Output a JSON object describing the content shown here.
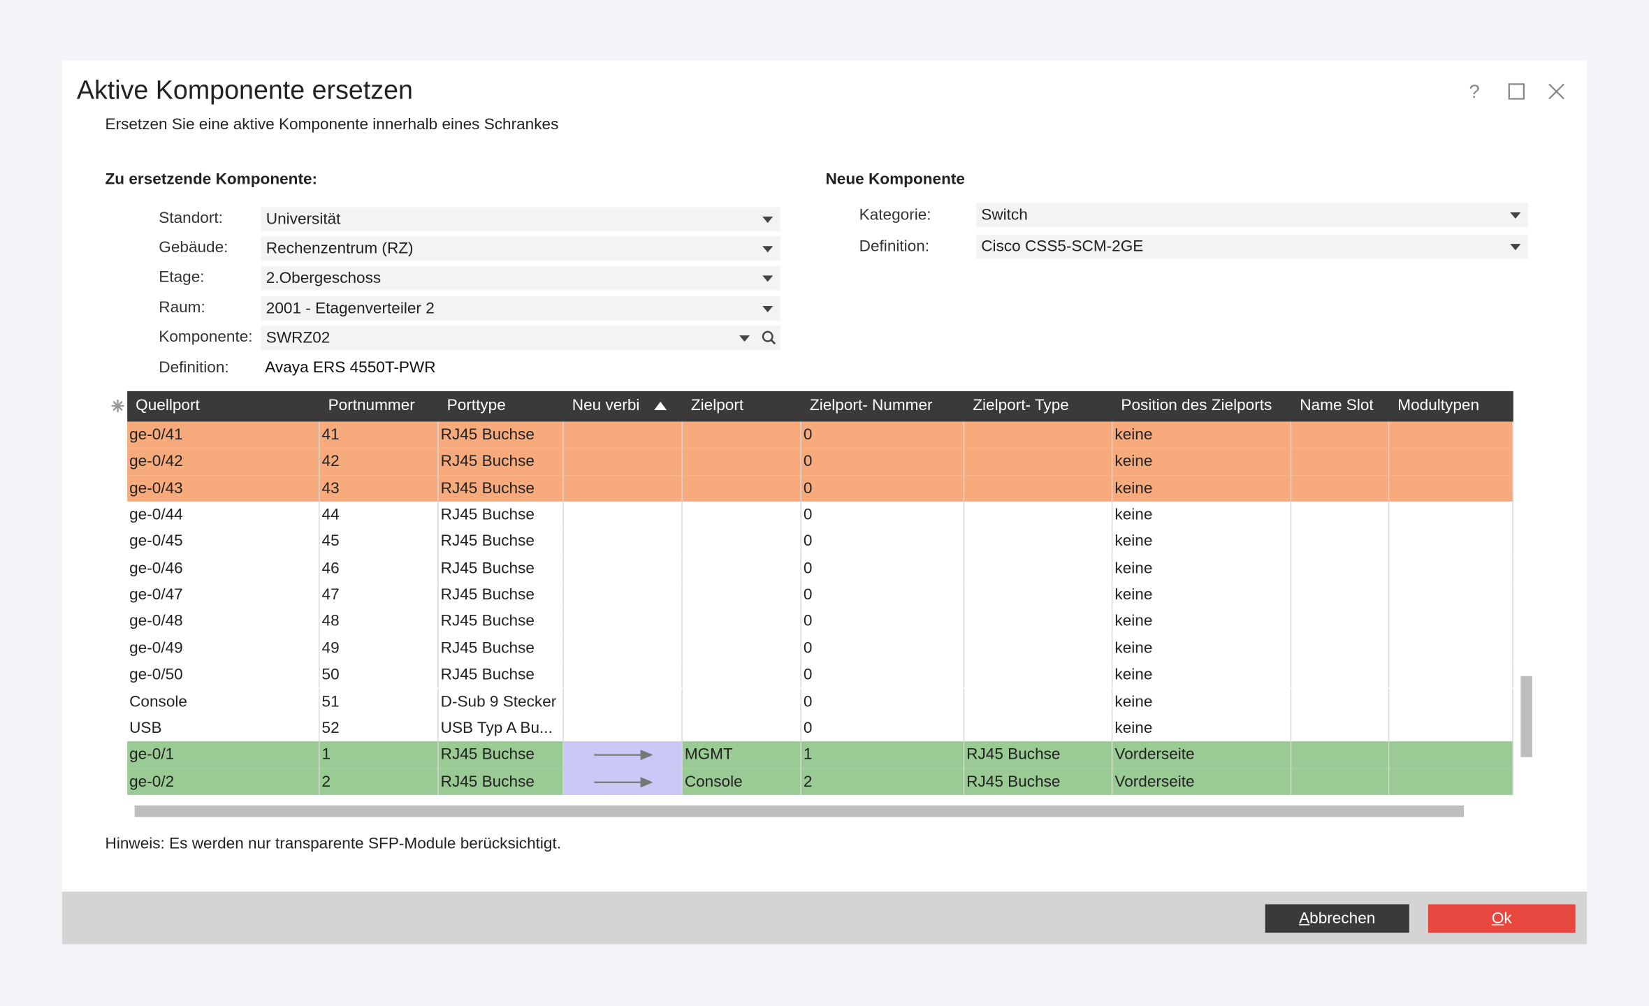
{
  "header": {
    "title": "Aktive Komponente ersetzen",
    "subtitle": "Ersetzen Sie eine aktive Komponente innerhalb eines Schrankes"
  },
  "left": {
    "heading": "Zu ersetzende Komponente:",
    "fields": [
      {
        "label": "Standort:",
        "value": "Universität"
      },
      {
        "label": "Gebäude:",
        "value": "Rechenzentrum (RZ)"
      },
      {
        "label": "Etage:",
        "value": "2.Obergeschoss"
      },
      {
        "label": "Raum:",
        "value": "2001 - Etagenverteiler 2"
      },
      {
        "label": "Komponente:",
        "value": "SWRZ02"
      }
    ],
    "definition": {
      "label": "Definition:",
      "value": "Avaya ERS 4550T-PWR"
    }
  },
  "right": {
    "heading": "Neue Komponente",
    "fields": [
      {
        "label": "Kategorie:",
        "value": "Switch"
      },
      {
        "label": "Definition:",
        "value": "Cisco CSS5-SCM-2GE"
      }
    ]
  },
  "table": {
    "columns": [
      "Quellport",
      "Portnummer",
      "Porttype",
      "Neu verbi",
      "Zielport",
      "Zielport- Nummer",
      "Zielport- Type",
      "Position des Zielports",
      "Name Slot",
      "Modultypen"
    ],
    "rows": [
      {
        "color": "#f7aa7c",
        "cells": [
          "ge-0/41",
          "41",
          "RJ45 Buchse",
          null,
          null,
          "0",
          null,
          "keine",
          null,
          null
        ]
      },
      {
        "color": "#f7aa7c",
        "cells": [
          "ge-0/42",
          "42",
          "RJ45 Buchse",
          null,
          null,
          "0",
          null,
          "keine",
          null,
          null
        ]
      },
      {
        "color": "#f7aa7c",
        "cells": [
          "ge-0/43",
          "43",
          "RJ45 Buchse",
          null,
          null,
          "0",
          null,
          "keine",
          null,
          null
        ]
      },
      {
        "color": null,
        "cells": [
          "ge-0/44",
          "44",
          "RJ45 Buchse",
          null,
          null,
          "0",
          null,
          "keine",
          null,
          null
        ]
      },
      {
        "color": null,
        "cells": [
          "ge-0/45",
          "45",
          "RJ45 Buchse",
          null,
          null,
          "0",
          null,
          "keine",
          null,
          null
        ]
      },
      {
        "color": null,
        "cells": [
          "ge-0/46",
          "46",
          "RJ45 Buchse",
          null,
          null,
          "0",
          null,
          "keine",
          null,
          null
        ]
      },
      {
        "color": null,
        "cells": [
          "ge-0/47",
          "47",
          "RJ45 Buchse",
          null,
          null,
          "0",
          null,
          "keine",
          null,
          null
        ]
      },
      {
        "color": null,
        "cells": [
          "ge-0/48",
          "48",
          "RJ45 Buchse",
          null,
          null,
          "0",
          null,
          "keine",
          null,
          null
        ]
      },
      {
        "color": null,
        "cells": [
          "ge-0/49",
          "49",
          "RJ45 Buchse",
          null,
          null,
          "0",
          null,
          "keine",
          null,
          null
        ]
      },
      {
        "color": null,
        "cells": [
          "ge-0/50",
          "50",
          "RJ45 Buchse",
          null,
          null,
          "0",
          null,
          "keine",
          null,
          null
        ]
      },
      {
        "color": null,
        "cells": [
          "Console",
          "51",
          "D-Sub 9 Stecker",
          null,
          null,
          "0",
          null,
          "keine",
          null,
          null
        ]
      },
      {
        "color": null,
        "cells": [
          "USB",
          "52",
          "USB Typ A Bu...",
          null,
          null,
          "0",
          null,
          "keine",
          null,
          null
        ]
      },
      {
        "color": "#9bcb94",
        "connected": true,
        "cells": [
          "ge-0/1",
          "1",
          "RJ45 Buchse",
          null,
          "MGMT",
          "1",
          "RJ45 Buchse",
          "Vorderseite",
          null,
          null
        ]
      },
      {
        "color": "#9bcb94",
        "connected": true,
        "cells": [
          "ge-0/2",
          "2",
          "RJ45 Buchse",
          null,
          "Console",
          "2",
          "RJ45 Buchse",
          "Vorderseite",
          null,
          null
        ]
      }
    ]
  },
  "note": "Hinweis: Es werden nur transparente SFP-Module berücksichtigt.",
  "buttons": {
    "cancel": "Abbrechen",
    "ok": "Ok"
  }
}
